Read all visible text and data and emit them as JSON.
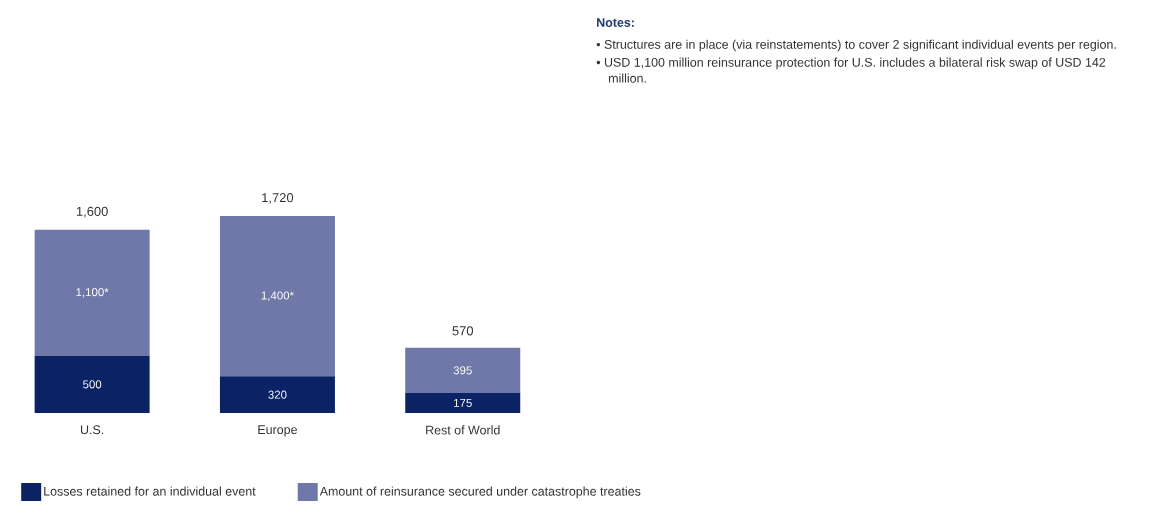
{
  "chart_data": {
    "type": "bar",
    "stacked": true,
    "categories": [
      "U.S.",
      "Europe",
      "Rest of World"
    ],
    "series": [
      {
        "name": "Losses retained for an individual event",
        "color": "#0b2365",
        "values": [
          500,
          320,
          175
        ],
        "value_labels": [
          "500",
          "320",
          "175"
        ]
      },
      {
        "name": "Amount of reinsurance secured under catastrophe treaties",
        "color": "#6f78a8",
        "values": [
          1100,
          1400,
          395
        ],
        "value_labels": [
          "1,100*",
          "1,400*",
          "395"
        ]
      }
    ],
    "totals": [
      "1,600",
      "1,720",
      "570"
    ],
    "tick_labels": "x",
    "legend": "bottom",
    "annotations": [
      "Notes:",
      "• Structures are in place (via reinstatements) to cover 2 significant individual events per region.",
      "• USD 1,100 million reinsurance protection for U.S. includes a bilateral risk swap of USD 142 million."
    ]
  }
}
